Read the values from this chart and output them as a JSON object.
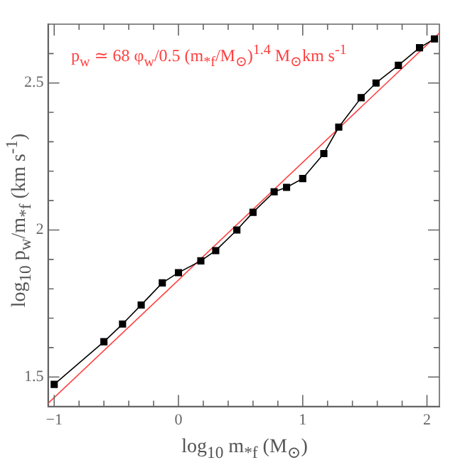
{
  "chart_data": {
    "type": "line",
    "xlabel": "log$_{10}$ m$_{*f}$ (M$_{⊙}$)",
    "ylabel": "log$_{10}$ p$_{w}$/m$_{*f}$ (km s$^{-1}$)",
    "annotations": [
      "p$_{w}$ ≃ 68 φ$_{w}$/0.5 (m$_{*f}$/M$_{⊙}$)$^{1.4}$ M$_{⊙}$km s$^{-1}$"
    ],
    "series": [
      {
        "color": "#000000",
        "marker": "square",
        "x": [
          -1.0,
          -0.6,
          -0.45,
          -0.3,
          -0.13,
          0.0,
          0.18,
          0.3,
          0.47,
          0.6,
          0.77,
          0.87,
          1.0,
          1.17,
          1.29,
          1.47,
          1.59,
          1.77,
          1.94,
          2.06
        ],
        "values": [
          1.475,
          1.62,
          1.68,
          1.745,
          1.82,
          1.855,
          1.895,
          1.93,
          2.0,
          2.06,
          2.13,
          2.145,
          2.175,
          2.26,
          2.35,
          2.45,
          2.5,
          2.56,
          2.62,
          2.65
        ]
      },
      {
        "color": "#ff4040",
        "marker": "none",
        "x": [
          -1.05,
          2.1
        ],
        "values": [
          1.41,
          2.67
        ]
      }
    ],
    "xlim": [
      -1.05,
      2.1
    ],
    "ylim": [
      1.4,
      2.7
    ],
    "xticks": [
      -1,
      {
        "value": -0.8,
        "label": null
      },
      {
        "value": -0.6,
        "label": null
      },
      {
        "value": -0.4,
        "label": null
      },
      {
        "value": -0.2,
        "label": null
      },
      0,
      {
        "value": 0.2,
        "label": null
      },
      {
        "value": 0.4,
        "label": null
      },
      {
        "value": 0.6,
        "label": null
      },
      {
        "value": 0.8,
        "label": null
      },
      1,
      {
        "value": 1.2,
        "label": null
      },
      {
        "value": 1.4,
        "label": null
      },
      {
        "value": 1.6,
        "label": null
      },
      {
        "value": 1.8,
        "label": null
      },
      2
    ],
    "yticks": [
      1.5,
      {
        "value": 1.6,
        "label": null
      },
      {
        "value": 1.7,
        "label": null
      },
      {
        "value": 1.8,
        "label": null
      },
      {
        "value": 1.9,
        "label": null
      },
      2,
      {
        "value": 2.1,
        "label": null
      },
      {
        "value": 2.2,
        "label": null
      },
      {
        "value": 2.3,
        "label": null
      },
      {
        "value": 2.4,
        "label": null
      },
      2.5,
      {
        "value": 2.6,
        "label": null
      }
    ],
    "grid": false,
    "legend": false,
    "line_style": "solid"
  }
}
